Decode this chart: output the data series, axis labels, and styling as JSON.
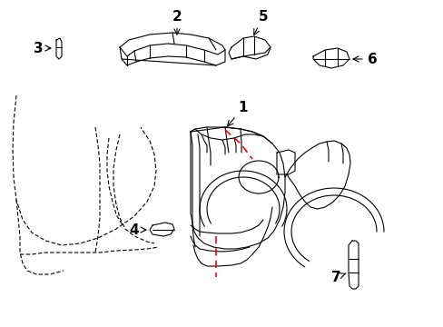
{
  "background_color": "#ffffff",
  "line_color": "#000000",
  "red_color": "#ff0000",
  "figsize": [
    4.89,
    3.6
  ],
  "dpi": 100,
  "label_fontsize": 11,
  "label_fontweight": "bold"
}
